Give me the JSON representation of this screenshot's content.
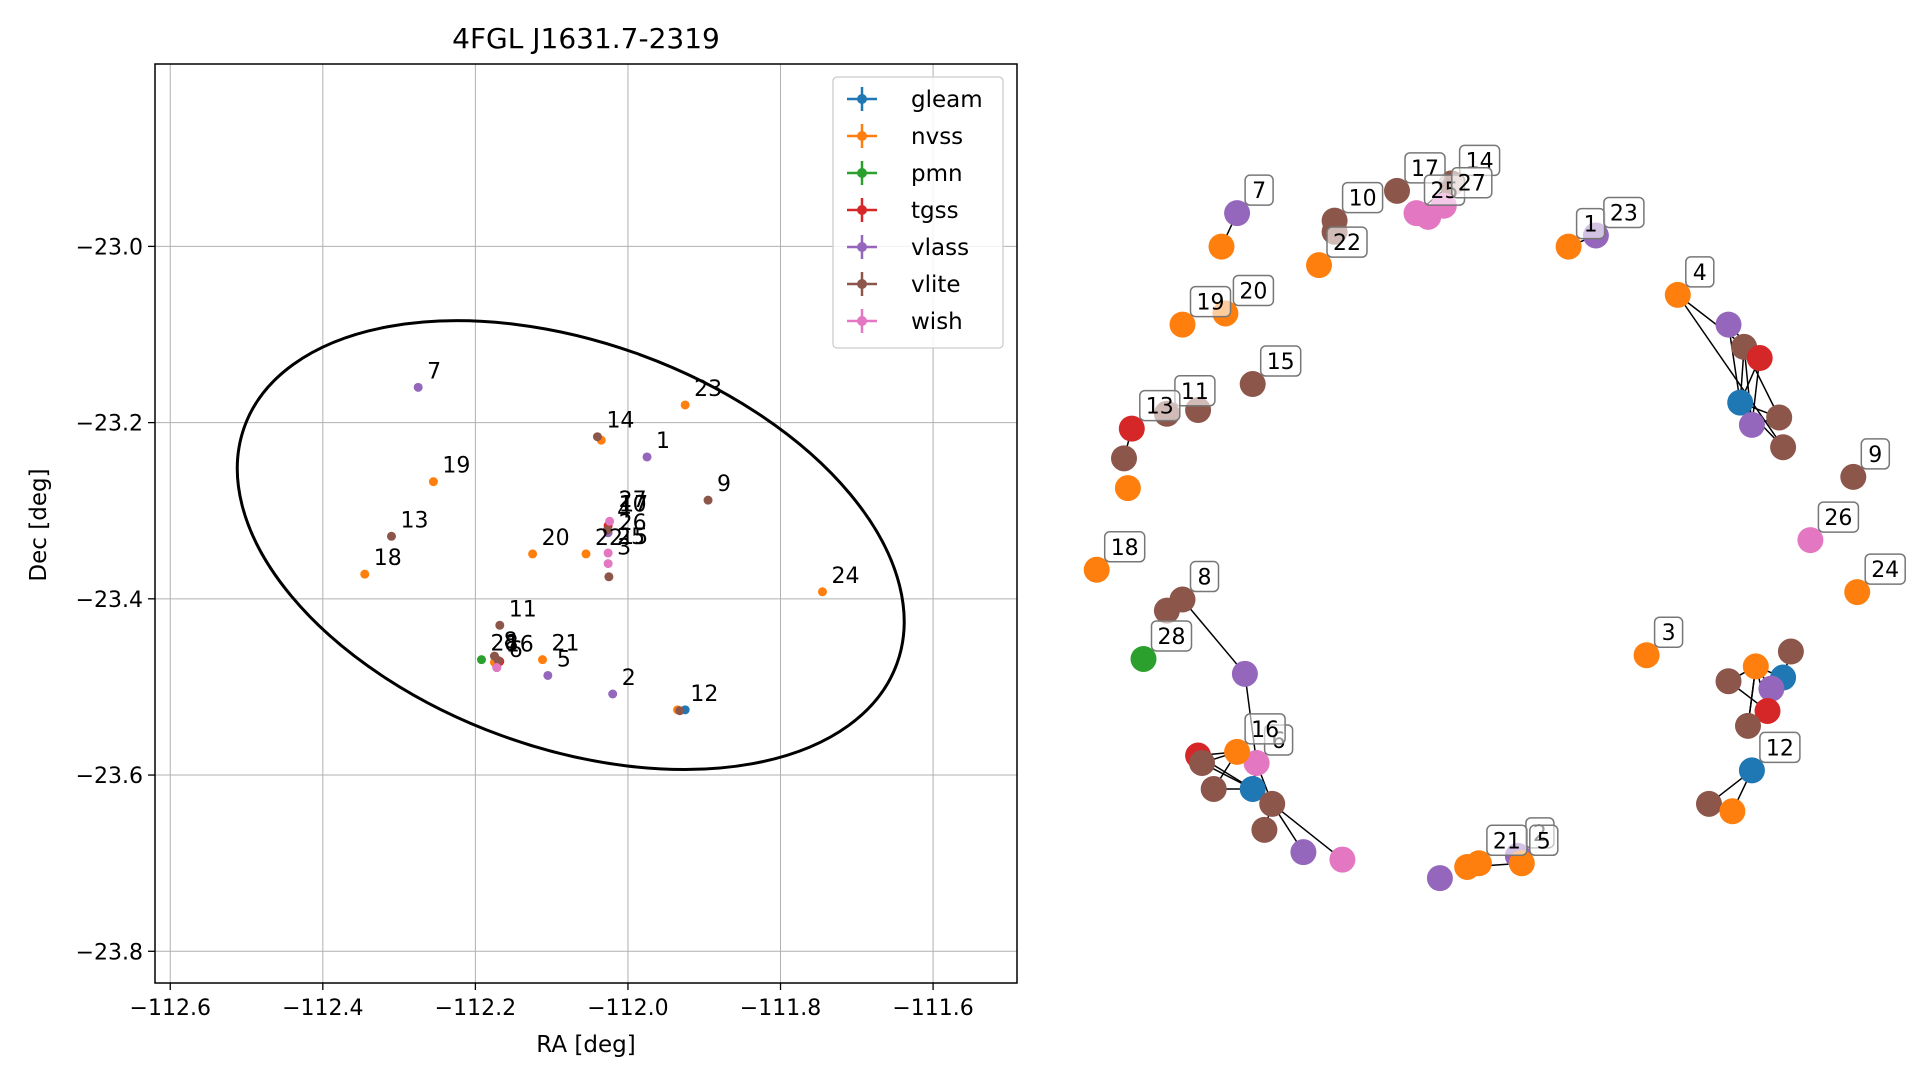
{
  "chart_data": [
    {
      "type": "scatter",
      "title": "4FGL J1631.7-2319",
      "xlabel": "RA [deg]",
      "ylabel": "Dec [deg]",
      "xlim": [
        -112.62,
        -111.49
      ],
      "ylim": [
        -23.836,
        -22.793
      ],
      "xticks": [
        -112.6,
        -112.4,
        -112.2,
        -112.0,
        -111.8,
        -111.6
      ],
      "xtick_labels": [
        "−112.6",
        "−112.4",
        "−112.2",
        "−112.0",
        "−111.8",
        "−111.6"
      ],
      "yticks": [
        -23.0,
        -23.2,
        -23.4,
        -23.6,
        -23.8
      ],
      "ytick_labels": [
        "−23.0",
        "−23.2",
        "−23.4",
        "−23.6",
        "−23.8"
      ],
      "grid": true,
      "legend_position": "top-right",
      "colors": {
        "gleam": "#1f77b4",
        "nvss": "#ff7f0e",
        "pmn": "#2ca02c",
        "tgss": "#d62728",
        "vlass": "#9467bd",
        "vlite": "#8c564b",
        "wish": "#e377c2"
      },
      "series": [
        {
          "name": "gleam",
          "points": [
            [
              -111.925,
              -23.526
            ],
            [
              -112.172,
              -23.475
            ]
          ]
        },
        {
          "name": "nvss",
          "points": [
            [
              -112.035,
              -23.22
            ],
            [
              -111.925,
              -23.18
            ],
            [
              -112.255,
              -23.267
            ],
            [
              -112.345,
              -23.372
            ],
            [
              -112.125,
              -23.349
            ],
            [
              -112.055,
              -23.349
            ],
            [
              -111.745,
              -23.392
            ],
            [
              -112.112,
              -23.469
            ],
            [
              -111.935,
              -23.526
            ],
            [
              -112.175,
              -23.472
            ]
          ]
        },
        {
          "name": "pmn",
          "points": [
            [
              -112.192,
              -23.469
            ]
          ]
        },
        {
          "name": "tgss",
          "points": [
            [
              -112.026,
              -23.317
            ],
            [
              -112.168,
              -23.471
            ]
          ]
        },
        {
          "name": "vlass",
          "points": [
            [
              -111.975,
              -23.239
            ],
            [
              -112.275,
              -23.16
            ],
            [
              -112.105,
              -23.487
            ],
            [
              -112.02,
              -23.508
            ],
            [
              -112.172,
              -23.478
            ],
            [
              -112.026,
              -23.325
            ]
          ]
        },
        {
          "name": "vlite",
          "points": [
            [
              -112.04,
              -23.216
            ],
            [
              -111.895,
              -23.288
            ],
            [
              -112.31,
              -23.329
            ],
            [
              -112.025,
              -23.375
            ],
            [
              -112.168,
              -23.43
            ],
            [
              -111.932,
              -23.527
            ],
            [
              -112.027,
              -23.322
            ],
            [
              -112.175,
              -23.465
            ],
            [
              -112.17,
              -23.47
            ]
          ]
        },
        {
          "name": "wish",
          "points": [
            [
              -112.024,
              -23.312
            ],
            [
              -112.026,
              -23.348
            ],
            [
              -112.026,
              -23.36
            ],
            [
              -112.172,
              -23.478
            ]
          ]
        }
      ],
      "annotations": [
        {
          "text": "7",
          "x": -112.275,
          "y": -23.16
        },
        {
          "text": "23",
          "x": -111.925,
          "y": -23.18
        },
        {
          "text": "14",
          "x": -112.04,
          "y": -23.216
        },
        {
          "text": "1",
          "x": -111.975,
          "y": -23.239
        },
        {
          "text": "19",
          "x": -112.255,
          "y": -23.267
        },
        {
          "text": "9",
          "x": -111.895,
          "y": -23.288
        },
        {
          "text": "27",
          "x": -112.024,
          "y": -23.306
        },
        {
          "text": "10",
          "x": -112.024,
          "y": -23.311
        },
        {
          "text": "17",
          "x": -112.022,
          "y": -23.311
        },
        {
          "text": "4",
          "x": -112.026,
          "y": -23.318
        },
        {
          "text": "13",
          "x": -112.31,
          "y": -23.329
        },
        {
          "text": "26",
          "x": -112.024,
          "y": -23.332
        },
        {
          "text": "20",
          "x": -112.125,
          "y": -23.349
        },
        {
          "text": "22",
          "x": -112.055,
          "y": -23.349
        },
        {
          "text": "25",
          "x": -112.026,
          "y": -23.348
        },
        {
          "text": "15",
          "x": -112.022,
          "y": -23.348
        },
        {
          "text": "3",
          "x": -112.026,
          "y": -23.36
        },
        {
          "text": "18",
          "x": -112.345,
          "y": -23.372
        },
        {
          "text": "24",
          "x": -111.745,
          "y": -23.392
        },
        {
          "text": "11",
          "x": -112.168,
          "y": -23.43
        },
        {
          "text": "28",
          "x": -112.192,
          "y": -23.469
        },
        {
          "text": "8",
          "x": -112.175,
          "y": -23.466
        },
        {
          "text": "16",
          "x": -112.172,
          "y": -23.47
        },
        {
          "text": "6",
          "x": -112.168,
          "y": -23.476
        },
        {
          "text": "21",
          "x": -112.112,
          "y": -23.469
        },
        {
          "text": "5",
          "x": -112.105,
          "y": -23.487
        },
        {
          "text": "2",
          "x": -112.02,
          "y": -23.508
        },
        {
          "text": "12",
          "x": -111.93,
          "y": -23.526
        }
      ],
      "ellipse": {
        "center": [
          -112.075,
          -23.339
        ],
        "semi_axes_deg": [
          0.455,
          0.23
        ],
        "angle_deg": -20
      }
    },
    {
      "type": "network",
      "title": "",
      "nodes": [
        {
          "id": "1",
          "series": "nvss",
          "x": 0.62,
          "y": 0.87,
          "label": "1"
        },
        {
          "id": "2",
          "series": "vlass",
          "x": 0.555,
          "y": 0.05,
          "label": "2"
        },
        {
          "id": "3",
          "series": "nvss",
          "x": 0.72,
          "y": 0.32,
          "label": "3"
        },
        {
          "id": "4",
          "series": "nvss",
          "x": 0.76,
          "y": 0.805,
          "label": "4"
        },
        {
          "id": "5",
          "series": "nvss",
          "x": 0.56,
          "y": 0.04,
          "label": "5"
        },
        {
          "id": "6",
          "series": "wish",
          "x": 0.22,
          "y": 0.175,
          "label": "6"
        },
        {
          "id": "7",
          "series": "vlass",
          "x": 0.195,
          "y": 0.915,
          "label": "7"
        },
        {
          "id": "8",
          "series": "vlite",
          "x": 0.125,
          "y": 0.395,
          "label": "8"
        },
        {
          "id": "9",
          "series": "vlite",
          "x": 0.985,
          "y": 0.56,
          "label": "9"
        },
        {
          "id": "10",
          "series": "vlite",
          "x": 0.32,
          "y": 0.905,
          "label": "10"
        },
        {
          "id": "11",
          "series": "vlite",
          "x": 0.105,
          "y": 0.645,
          "label": "11"
        },
        {
          "id": "12",
          "series": "gleam",
          "x": 0.855,
          "y": 0.165,
          "label": "12"
        },
        {
          "id": "13",
          "series": "tgss",
          "x": 0.06,
          "y": 0.625,
          "label": "13"
        },
        {
          "id": "14",
          "series": "vlite",
          "x": 0.47,
          "y": 0.955,
          "label": "14"
        },
        {
          "id": "15",
          "series": "vlite",
          "x": 0.215,
          "y": 0.685,
          "label": "15"
        },
        {
          "id": "16",
          "series": "nvss",
          "x": 0.195,
          "y": 0.19,
          "label": "16"
        },
        {
          "id": "17",
          "series": "vlite",
          "x": 0.4,
          "y": 0.945,
          "label": "17"
        },
        {
          "id": "18",
          "series": "nvss",
          "x": 0.015,
          "y": 0.435,
          "label": "18"
        },
        {
          "id": "19",
          "series": "nvss",
          "x": 0.125,
          "y": 0.765,
          "label": "19"
        },
        {
          "id": "20",
          "series": "nvss",
          "x": 0.18,
          "y": 0.78,
          "label": "20"
        },
        {
          "id": "21",
          "series": "nvss",
          "x": 0.505,
          "y": 0.04,
          "label": "21"
        },
        {
          "id": "22",
          "series": "nvss",
          "x": 0.3,
          "y": 0.845,
          "label": "22"
        },
        {
          "id": "23",
          "series": "vlass",
          "x": 0.655,
          "y": 0.885,
          "label": "23"
        },
        {
          "id": "24",
          "series": "nvss",
          "x": 0.99,
          "y": 0.405,
          "label": "24"
        },
        {
          "id": "25",
          "series": "wish",
          "x": 0.425,
          "y": 0.915,
          "label": "25"
        },
        {
          "id": "26",
          "series": "wish",
          "x": 0.93,
          "y": 0.475,
          "label": "26"
        },
        {
          "id": "27",
          "series": "wish",
          "x": 0.46,
          "y": 0.925,
          "label": "27"
        },
        {
          "id": "28",
          "series": "pmn",
          "x": 0.075,
          "y": 0.315,
          "label": "28"
        },
        {
          "id": "n29",
          "series": "vlass",
          "x": 0.825,
          "y": 0.765
        },
        {
          "id": "n30",
          "series": "vlite",
          "x": 0.845,
          "y": 0.735
        },
        {
          "id": "n31",
          "series": "tgss",
          "x": 0.865,
          "y": 0.72
        },
        {
          "id": "n32",
          "series": "gleam",
          "x": 0.84,
          "y": 0.66
        },
        {
          "id": "n33",
          "series": "vlass",
          "x": 0.855,
          "y": 0.63
        },
        {
          "id": "n34",
          "series": "vlite",
          "x": 0.89,
          "y": 0.64
        },
        {
          "id": "n35",
          "series": "vlite",
          "x": 0.895,
          "y": 0.6
        },
        {
          "id": "n36",
          "series": "vlite",
          "x": 0.905,
          "y": 0.325
        },
        {
          "id": "n37",
          "series": "nvss",
          "x": 0.86,
          "y": 0.305
        },
        {
          "id": "n38",
          "series": "gleam",
          "x": 0.895,
          "y": 0.29
        },
        {
          "id": "n39",
          "series": "vlite",
          "x": 0.825,
          "y": 0.285
        },
        {
          "id": "n40",
          "series": "vlass",
          "x": 0.88,
          "y": 0.275
        },
        {
          "id": "n41",
          "series": "tgss",
          "x": 0.875,
          "y": 0.245
        },
        {
          "id": "n42",
          "series": "vlite",
          "x": 0.85,
          "y": 0.225
        },
        {
          "id": "n43",
          "series": "vlite",
          "x": 0.8,
          "y": 0.12
        },
        {
          "id": "n44",
          "series": "nvss",
          "x": 0.83,
          "y": 0.11
        },
        {
          "id": "n45",
          "series": "vlass",
          "x": 0.455,
          "y": 0.02
        },
        {
          "id": "n46",
          "series": "nvss",
          "x": 0.49,
          "y": 0.035
        },
        {
          "id": "n47",
          "series": "vlite",
          "x": 0.105,
          "y": 0.38
        },
        {
          "id": "n48",
          "series": "vlass",
          "x": 0.205,
          "y": 0.295
        },
        {
          "id": "n49",
          "series": "tgss",
          "x": 0.145,
          "y": 0.185
        },
        {
          "id": "n50",
          "series": "vlite",
          "x": 0.15,
          "y": 0.175
        },
        {
          "id": "n51",
          "series": "gleam",
          "x": 0.215,
          "y": 0.14
        },
        {
          "id": "n52",
          "series": "vlite",
          "x": 0.165,
          "y": 0.14
        },
        {
          "id": "n53",
          "series": "vlite",
          "x": 0.24,
          "y": 0.12
        },
        {
          "id": "n54",
          "series": "vlite",
          "x": 0.23,
          "y": 0.085
        },
        {
          "id": "n55",
          "series": "vlass",
          "x": 0.28,
          "y": 0.055
        },
        {
          "id": "n56",
          "series": "wish",
          "x": 0.33,
          "y": 0.045
        },
        {
          "id": "n57",
          "series": "nvss",
          "x": 0.175,
          "y": 0.87
        },
        {
          "id": "n58",
          "series": "vlite",
          "x": 0.145,
          "y": 0.65
        },
        {
          "id": "n59",
          "series": "vlite",
          "x": 0.05,
          "y": 0.585
        },
        {
          "id": "n60",
          "series": "nvss",
          "x": 0.055,
          "y": 0.545
        },
        {
          "id": "n61",
          "series": "vlite",
          "x": 0.32,
          "y": 0.89
        },
        {
          "id": "n62",
          "series": "wish",
          "x": 0.44,
          "y": 0.91
        }
      ],
      "edges": [
        [
          "7",
          "n57"
        ],
        [
          "14",
          "25"
        ],
        [
          "23",
          "1"
        ],
        [
          "n29",
          "n32"
        ],
        [
          "n29",
          "n31"
        ],
        [
          "n30",
          "n31"
        ],
        [
          "n30",
          "n32"
        ],
        [
          "n30",
          "n33"
        ],
        [
          "n30",
          "n34"
        ],
        [
          "n31",
          "n32"
        ],
        [
          "n31",
          "n33"
        ],
        [
          "n32",
          "n33"
        ],
        [
          "n32",
          "n34"
        ],
        [
          "n33",
          "n34"
        ],
        [
          "n35",
          "n32"
        ],
        [
          "n35",
          "4"
        ],
        [
          "4",
          "n31"
        ],
        [
          "n36",
          "n38"
        ],
        [
          "n37",
          "n38"
        ],
        [
          "n37",
          "n39"
        ],
        [
          "n37",
          "n40"
        ],
        [
          "n37",
          "n41"
        ],
        [
          "n37",
          "n42"
        ],
        [
          "n39",
          "n41"
        ],
        [
          "n39",
          "n37"
        ],
        [
          "n40",
          "n38"
        ],
        [
          "n41",
          "n40"
        ],
        [
          "n42",
          "n37"
        ],
        [
          "n43",
          "12"
        ],
        [
          "n44",
          "12"
        ],
        [
          "n46",
          "21"
        ],
        [
          "n46",
          "5"
        ],
        [
          "8",
          "n48"
        ],
        [
          "n47",
          "8"
        ],
        [
          "n48",
          "6"
        ],
        [
          "n49",
          "n51"
        ],
        [
          "n49",
          "16"
        ],
        [
          "n50",
          "n51"
        ],
        [
          "n50",
          "16"
        ],
        [
          "n52",
          "16"
        ],
        [
          "n52",
          "n51"
        ],
        [
          "n51",
          "6"
        ],
        [
          "16",
          "6"
        ],
        [
          "6",
          "n53"
        ],
        [
          "n53",
          "n54"
        ],
        [
          "n53",
          "n55"
        ],
        [
          "n53",
          "n56"
        ],
        [
          "n51",
          "n53"
        ],
        [
          "13",
          "n59"
        ]
      ]
    }
  ]
}
